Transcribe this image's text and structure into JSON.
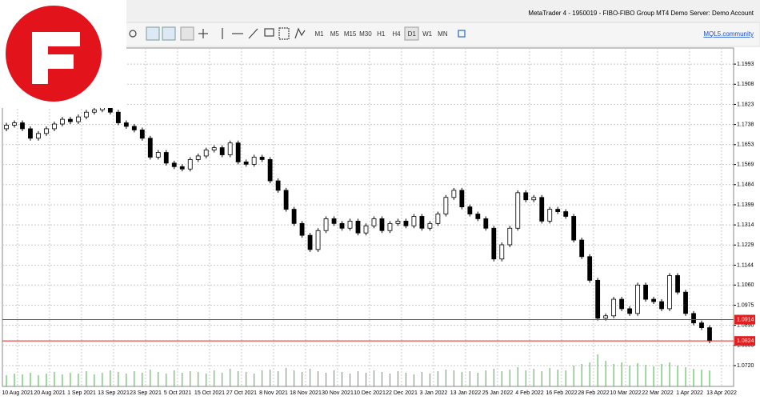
{
  "window": {
    "title": "MetaTrader 4 - 1950019 - FIBO-FIBO Group MT4 Demo Server: Demo Account"
  },
  "toolbar": {
    "timeframes": [
      "M1",
      "M5",
      "M15",
      "M30",
      "H1",
      "H4",
      "D1",
      "W1",
      "MN"
    ],
    "active_timeframe": "D1",
    "link": "MQL5.community"
  },
  "chart_data": {
    "type": "candlestick",
    "open": [
      1.172,
      1.1735,
      1.1745,
      1.172,
      1.168,
      1.17,
      1.172,
      1.174,
      1.176,
      1.175,
      1.177,
      1.179,
      1.18,
      1.181,
      1.179,
      1.1745,
      1.173,
      1.1715,
      1.168,
      1.16,
      1.162,
      1.1575,
      1.156,
      1.155,
      1.159,
      1.1605,
      1.163,
      1.164,
      1.161,
      1.166,
      1.158,
      1.157,
      1.16,
      1.159,
      1.15,
      1.146,
      1.138,
      1.132,
      1.127,
      1.121,
      1.129,
      1.134,
      1.132,
      1.13,
      1.133,
      1.128,
      1.131,
      1.134,
      1.129,
      1.132,
      1.133,
      1.131,
      1.135,
      1.13,
      1.132,
      1.136,
      1.143,
      1.146,
      1.139,
      1.136,
      1.134,
      1.13,
      1.117,
      1.123,
      1.13,
      1.145,
      1.142,
      1.143,
      1.133,
      1.138,
      1.137,
      1.135,
      1.125,
      1.118,
      1.108,
      1.092,
      1.093,
      1.1,
      1.096,
      1.094,
      1.106,
      1.1,
      1.099,
      1.096,
      1.11,
      1.103,
      1.094,
      1.09,
      1.088
    ],
    "close": [
      1.1735,
      1.1745,
      1.172,
      1.168,
      1.17,
      1.172,
      1.174,
      1.176,
      1.175,
      1.177,
      1.179,
      1.18,
      1.181,
      1.179,
      1.1745,
      1.173,
      1.1715,
      1.168,
      1.16,
      1.162,
      1.1575,
      1.156,
      1.155,
      1.159,
      1.1605,
      1.163,
      1.164,
      1.161,
      1.166,
      1.158,
      1.157,
      1.16,
      1.159,
      1.15,
      1.146,
      1.138,
      1.132,
      1.127,
      1.121,
      1.129,
      1.134,
      1.132,
      1.13,
      1.133,
      1.128,
      1.131,
      1.134,
      1.129,
      1.132,
      1.133,
      1.131,
      1.135,
      1.13,
      1.132,
      1.136,
      1.143,
      1.146,
      1.139,
      1.136,
      1.134,
      1.13,
      1.117,
      1.123,
      1.13,
      1.145,
      1.142,
      1.143,
      1.133,
      1.138,
      1.137,
      1.135,
      1.125,
      1.118,
      1.108,
      1.092,
      1.093,
      1.1,
      1.096,
      1.094,
      1.106,
      1.1,
      1.099,
      1.096,
      1.11,
      1.103,
      1.094,
      1.09,
      1.088,
      1.0824
    ],
    "volume": [
      14,
      16,
      15,
      17,
      14,
      16,
      18,
      15,
      17,
      16,
      19,
      15,
      17,
      20,
      18,
      16,
      19,
      17,
      21,
      18,
      16,
      20,
      17,
      19,
      18,
      16,
      20,
      17,
      22,
      19,
      18,
      16,
      20,
      21,
      19,
      23,
      20,
      18,
      22,
      19,
      17,
      20,
      18,
      16,
      19,
      17,
      20,
      18,
      16,
      19,
      17,
      15,
      18,
      16,
      19,
      21,
      20,
      18,
      19,
      17,
      20,
      22,
      19,
      21,
      24,
      20,
      22,
      19,
      23,
      21,
      20,
      26,
      28,
      30,
      40,
      32,
      28,
      30,
      26,
      29,
      27,
      25,
      28,
      30,
      26,
      24,
      22,
      21,
      20
    ],
    "ylim": [
      1.0632,
      1.2061
    ],
    "yticks": [
      1.1993,
      {
        "value": 1.1908,
        "label": "1.1908"
      },
      1.1823,
      1.1738,
      1.1653,
      1.1569,
      1.1484,
      1.1399,
      1.1314,
      1.1229,
      1.1144,
      {
        "value": 1.106,
        "label": "1.1060"
      },
      1.0975,
      {
        "value": 1.089,
        "label": "1.0890"
      },
      1.0805,
      {
        "value": 1.072,
        "label": "1.0720"
      }
    ],
    "price_lines": [
      {
        "value": 1.0914,
        "color": "#e02020"
      },
      {
        "value": 1.0824,
        "color": "#e02020"
      }
    ],
    "x_labels": [
      "10 Aug 2021",
      "20 Aug 2021",
      "1 Sep 2021",
      "13 Sep 2021",
      "23 Sep 2021",
      "5 Oct 2021",
      "15 Oct 2021",
      "27 Oct 2021",
      "8 Nov 2021",
      "18 Nov 2021",
      "30 Nov 2021",
      "10 Dec 2021",
      "22 Dec 2021",
      "3 Jan 2022",
      "13 Jan 2022",
      "25 Jan 2022",
      "4 Feb 2022",
      "16 Feb 2022",
      "28 Feb 2022",
      "10 Mar 2022",
      "22 Mar 2022",
      "1 Apr 2022",
      "13 Apr 2022"
    ],
    "bull_color": "#ffffff",
    "bear_color": "#000000",
    "volume_color": "#33bb33",
    "grid": true
  }
}
